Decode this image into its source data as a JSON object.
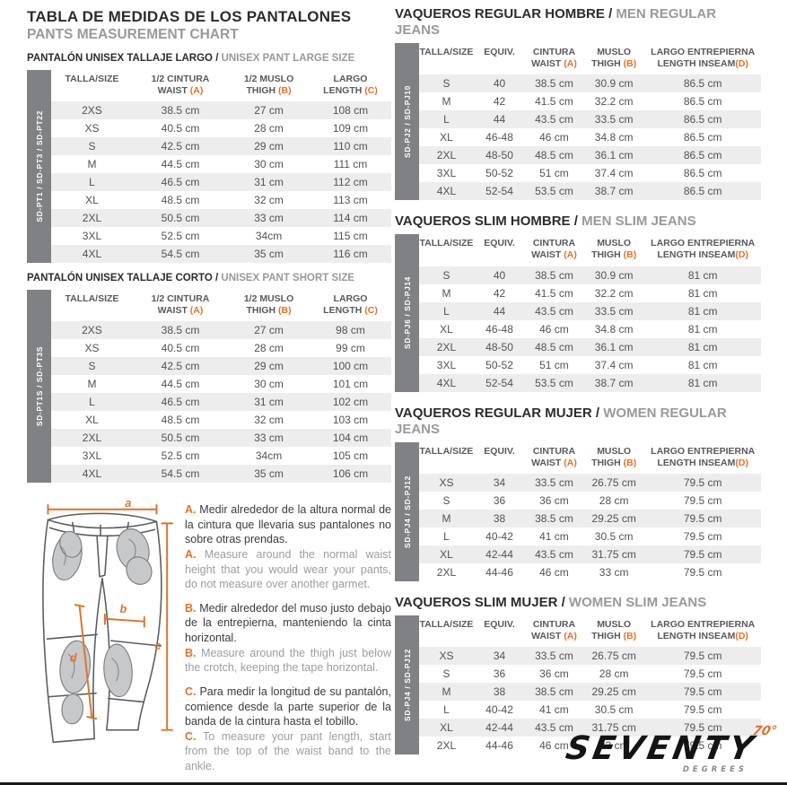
{
  "accent_color": "#e0722c",
  "colors": {
    "sidebar_gray": "#808184",
    "row_shade": "#ededee",
    "heading_gray": "#97999c",
    "title_dark": "#2b2c2e",
    "cell_text": "#515254"
  },
  "header": {
    "title": "TABLA DE MEDIDAS DE LOS PANTALONES",
    "subtitle": "PANTS MEASUREMENT CHART"
  },
  "left_tables": [
    {
      "heading_primary": "PANTALÓN UNISEX TALLAJE LARGO",
      "heading_secondary": "UNISEX PANT LARGE SIZE",
      "side_label": "SD-PT1 / SD-PT3 / SD-PT22",
      "columns": [
        {
          "l1": "TALLA/SIZE",
          "l2": "",
          "letter": "",
          "sep": ""
        },
        {
          "l1": "1/2 CINTURA",
          "l2": "WAIST",
          "letter": "(A)",
          "sep": " "
        },
        {
          "l1": "1/2 MUSLO",
          "l2": "THIGH",
          "letter": "(B)",
          "sep": " "
        },
        {
          "l1": "LARGO",
          "l2": "LENGTH",
          "letter": "(C)",
          "sep": " "
        }
      ],
      "rows": [
        [
          "2XS",
          "38.5 cm",
          "27 cm",
          "108 cm"
        ],
        [
          "XS",
          "40.5 cm",
          "28 cm",
          "109 cm"
        ],
        [
          "S",
          "42.5 cm",
          "29 cm",
          "110 cm"
        ],
        [
          "M",
          "44.5 cm",
          "30 cm",
          "111 cm"
        ],
        [
          "L",
          "46.5 cm",
          "31 cm",
          "112 cm"
        ],
        [
          "XL",
          "48.5 cm",
          "32 cm",
          "113 cm"
        ],
        [
          "2XL",
          "50.5 cm",
          "33 cm",
          "114 cm"
        ],
        [
          "3XL",
          "52.5 cm",
          "34cm",
          "115 cm"
        ],
        [
          "4XL",
          "54.5 cm",
          "35 cm",
          "116 cm"
        ]
      ]
    },
    {
      "heading_primary": "PANTALÓN UNISEX TALLAJE CORTO",
      "heading_secondary": "UNISEX PANT SHORT SIZE",
      "side_label": "SD-PT1S / SD-PT3S",
      "columns": [
        {
          "l1": "TALLA/SIZE",
          "l2": "",
          "letter": "",
          "sep": ""
        },
        {
          "l1": "1/2 CINTURA",
          "l2": "WAIST",
          "letter": "(A)",
          "sep": " "
        },
        {
          "l1": "1/2 MUSLO",
          "l2": "THIGH",
          "letter": "(B)",
          "sep": " "
        },
        {
          "l1": "LARGO",
          "l2": "LENGTH",
          "letter": "(C)",
          "sep": " "
        }
      ],
      "rows": [
        [
          "2XS",
          "38.5 cm",
          "27 cm",
          "98 cm"
        ],
        [
          "XS",
          "40.5 cm",
          "28 cm",
          "99 cm"
        ],
        [
          "S",
          "42.5 cm",
          "29 cm",
          "100 cm"
        ],
        [
          "M",
          "44.5 cm",
          "30 cm",
          "101 cm"
        ],
        [
          "L",
          "46.5 cm",
          "31 cm",
          "102 cm"
        ],
        [
          "XL",
          "48.5 cm",
          "32 cm",
          "103 cm"
        ],
        [
          "2XL",
          "50.5 cm",
          "33 cm",
          "104 cm"
        ],
        [
          "3XL",
          "52.5 cm",
          "34cm",
          "105 cm"
        ],
        [
          "4XL",
          "54.5 cm",
          "35 cm",
          "106 cm"
        ]
      ]
    }
  ],
  "right_tables": [
    {
      "heading_primary": "VAQUEROS REGULAR HOMBRE",
      "heading_secondary": "MEN REGULAR JEANS",
      "side_label": "SD-PJ2 / SD-PJ10",
      "columns": [
        {
          "l1": "TALLA/SIZE",
          "l2": "",
          "letter": "",
          "sep": ""
        },
        {
          "l1": "EQUIV.",
          "l2": "",
          "letter": "",
          "sep": ""
        },
        {
          "l1": "CINTURA",
          "l2": "WAIST",
          "letter": "(A)",
          "sep": " "
        },
        {
          "l1": "MUSLO",
          "l2": "THIGH",
          "letter": "(B)",
          "sep": " "
        },
        {
          "l1": "LARGO ENTREPIERNA",
          "l2": "LENGTH INSEAM",
          "letter": "(D)",
          "sep": ""
        }
      ],
      "rows": [
        [
          "S",
          "40",
          "38.5 cm",
          "30.9 cm",
          "86.5 cm"
        ],
        [
          "M",
          "42",
          "41.5 cm",
          "32.2 cm",
          "86.5 cm"
        ],
        [
          "L",
          "44",
          "43.5 cm",
          "33.5 cm",
          "86.5 cm"
        ],
        [
          "XL",
          "46-48",
          "46 cm",
          "34.8 cm",
          "86.5 cm"
        ],
        [
          "2XL",
          "48-50",
          "48.5 cm",
          "36.1 cm",
          "86.5 cm"
        ],
        [
          "3XL",
          "50-52",
          "51 cm",
          "37.4 cm",
          "86.5 cm"
        ],
        [
          "4XL",
          "52-54",
          "53.5 cm",
          "38.7 cm",
          "86.5 cm"
        ]
      ]
    },
    {
      "heading_primary": "VAQUEROS SLIM HOMBRE",
      "heading_secondary": "MEN SLIM JEANS",
      "side_label": "SD-PJ6 / SD-PJ14",
      "columns": [
        {
          "l1": "TALLA/SIZE",
          "l2": "",
          "letter": "",
          "sep": ""
        },
        {
          "l1": "EQUIV.",
          "l2": "",
          "letter": "",
          "sep": ""
        },
        {
          "l1": "CINTURA",
          "l2": "WAIST",
          "letter": "(A)",
          "sep": " "
        },
        {
          "l1": "MUSLO",
          "l2": "THIGH",
          "letter": "(B)",
          "sep": " "
        },
        {
          "l1": "LARGO ENTREPIERNA",
          "l2": "LENGTH INSEAM",
          "letter": "(D)",
          "sep": ""
        }
      ],
      "rows": [
        [
          "S",
          "40",
          "38.5 cm",
          "30.9 cm",
          "81 cm"
        ],
        [
          "M",
          "42",
          "41.5 cm",
          "32.2 cm",
          "81 cm"
        ],
        [
          "L",
          "44",
          "43.5 cm",
          "33.5 cm",
          "81 cm"
        ],
        [
          "XL",
          "46-48",
          "46 cm",
          "34.8 cm",
          "81 cm"
        ],
        [
          "2XL",
          "48-50",
          "48.5 cm",
          "36.1 cm",
          "81 cm"
        ],
        [
          "3XL",
          "50-52",
          "51 cm",
          "37.4 cm",
          "81 cm"
        ],
        [
          "4XL",
          "52-54",
          "53.5 cm",
          "38.7 cm",
          "81 cm"
        ]
      ]
    },
    {
      "heading_primary": "VAQUEROS REGULAR MUJER",
      "heading_secondary": "WOMEN REGULAR JEANS",
      "side_label": "SD-PJ4 / SD-PJ12",
      "columns": [
        {
          "l1": "TALLA/SIZE",
          "l2": "",
          "letter": "",
          "sep": ""
        },
        {
          "l1": "EQUIV.",
          "l2": "",
          "letter": "",
          "sep": ""
        },
        {
          "l1": "CINTURA",
          "l2": "WAIST",
          "letter": "(A)",
          "sep": " "
        },
        {
          "l1": "MUSLO",
          "l2": "THIGH",
          "letter": "(B)",
          "sep": " "
        },
        {
          "l1": "LARGO ENTREPIERNA",
          "l2": "LENGTH INSEAM",
          "letter": "(D)",
          "sep": ""
        }
      ],
      "rows": [
        [
          "XS",
          "34",
          "33.5 cm",
          "26.75 cm",
          "79.5 cm"
        ],
        [
          "S",
          "36",
          "36 cm",
          "28 cm",
          "79.5 cm"
        ],
        [
          "M",
          "38",
          "38.5 cm",
          "29.25 cm",
          "79.5 cm"
        ],
        [
          "L",
          "40-42",
          "41 cm",
          "30.5 cm",
          "79.5 cm"
        ],
        [
          "XL",
          "42-44",
          "43.5 cm",
          "31.75 cm",
          "79.5 cm"
        ],
        [
          "2XL",
          "44-46",
          "46 cm",
          "33 cm",
          "79.5 cm"
        ]
      ]
    },
    {
      "heading_primary": "VAQUEROS SLIM MUJER",
      "heading_secondary": "WOMEN SLIM JEANS",
      "side_label": "SD-PJ4 / SD-PJ12",
      "columns": [
        {
          "l1": "TALLA/SIZE",
          "l2": "",
          "letter": "",
          "sep": ""
        },
        {
          "l1": "EQUIV.",
          "l2": "",
          "letter": "",
          "sep": ""
        },
        {
          "l1": "CINTURA",
          "l2": "WAIST",
          "letter": "(A)",
          "sep": " "
        },
        {
          "l1": "MUSLO",
          "l2": "THIGH",
          "letter": "(B)",
          "sep": " "
        },
        {
          "l1": "LARGO ENTREPIERNA",
          "l2": "LENGTH INSEAM",
          "letter": "(D)",
          "sep": ""
        }
      ],
      "rows": [
        [
          "XS",
          "34",
          "33.5 cm",
          "26.75 cm",
          "79.5 cm"
        ],
        [
          "S",
          "36",
          "36 cm",
          "28 cm",
          "79.5 cm"
        ],
        [
          "M",
          "38",
          "38.5 cm",
          "29.25 cm",
          "79.5 cm"
        ],
        [
          "L",
          "40-42",
          "41 cm",
          "30.5 cm",
          "79.5 cm"
        ],
        [
          "XL",
          "42-44",
          "43.5 cm",
          "31.75 cm",
          "79.5 cm"
        ],
        [
          "2XL",
          "44-46",
          "46 cm",
          "33 cm",
          "79.5 cm"
        ]
      ]
    }
  ],
  "diagram": {
    "labels": {
      "a": "a",
      "b": "b",
      "c": "c",
      "d": "d"
    }
  },
  "notes": [
    {
      "letter": "A.",
      "es": "Medir alrededor de la altura normal de la cintura que llevaria sus pantalones no sobre otras prendas.",
      "en": "Measure around the normal waist height that you would wear your pants, do not measure over another garmet."
    },
    {
      "letter": "B.",
      "es": "Medir alrededor del muso justo debajo de la entrepierna, manteniendo la cinta horizontal.",
      "en": "Measure around the thigh just below the crotch, keeping the tape horizontal."
    },
    {
      "letter": "C.",
      "es": "Para medir la longitud de su pantalón, comience desde la parte superior de la banda de la cintura hasta el tobillo.",
      "en": "To measure your pant length, start from the top of the waist band to the ankle."
    }
  ],
  "footer_logo": {
    "brand": "SEVENTY",
    "degree_mark": "70°",
    "sub_brand": "DEGREES"
  }
}
